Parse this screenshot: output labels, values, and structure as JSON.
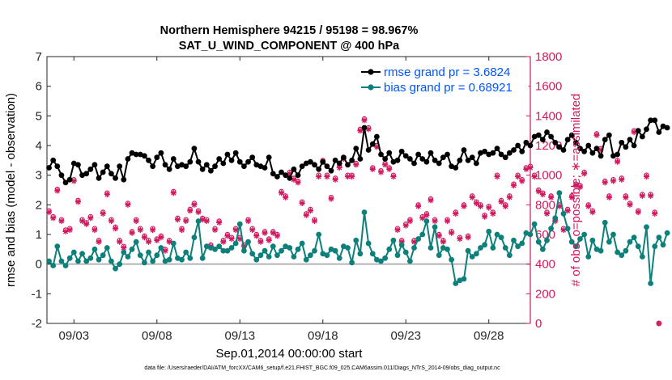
{
  "chart_data": {
    "type": "line",
    "title_line1": "Northern Hemisphere 94215 / 95198 = 98.967%",
    "title_line2": "SAT_U_WIND_COMPONENT @ 400 hPa",
    "xlabel": "Sep.01,2014 00:00:00 start",
    "ylabel_left": "rmse and bias (model - observation)",
    "ylabel_right": "# of obs: o=possible; ∗=assimilated",
    "footer": "data file: /Users/raeder/DAI/ATM_forcXX/CAM6_setup/f.e21.FHIST_BGC.f09_025.CAM6assim.011/Diags_NTrS_2014-09/obs_diag_output.nc",
    "x_range": [
      1.375,
      30.5
    ],
    "ylim_left": [
      -2,
      7
    ],
    "ylim_right": [
      0,
      1800
    ],
    "x_ticks": [
      {
        "x": 3,
        "label": "09/03"
      },
      {
        "x": 8,
        "label": "09/08"
      },
      {
        "x": 13,
        "label": "09/13"
      },
      {
        "x": 18,
        "label": "09/18"
      },
      {
        "x": 23,
        "label": "09/23"
      },
      {
        "x": 28,
        "label": "09/28"
      }
    ],
    "y_ticks_left": [
      "-2",
      "-1",
      "0",
      "1",
      "2",
      "3",
      "4",
      "5",
      "6",
      "7"
    ],
    "y_ticks_right": [
      "0",
      "200",
      "400",
      "600",
      "800",
      "1000",
      "1200",
      "1400",
      "1600",
      "1800"
    ],
    "zero_line": 0,
    "x_start": 1.5,
    "x_step": 0.25,
    "colors": {
      "rmse": "#000000",
      "bias": "#0e807b",
      "obs": "#d2195f",
      "zero": "#b5b5b5",
      "legend_text": "#0055ff"
    },
    "legend": {
      "placement": "top-right"
    },
    "series": [
      {
        "name": "rmse grand pr = 3.6824",
        "axis": "left",
        "values": [
          3.25,
          3.5,
          3.3,
          3.0,
          2.75,
          2.85,
          3.4,
          3.35,
          3.0,
          3.05,
          3.2,
          3.35,
          2.9,
          3.1,
          3.3,
          3.05,
          2.9,
          3.3,
          2.85,
          3.55,
          3.75,
          3.7,
          3.7,
          3.65,
          3.5,
          3.3,
          3.6,
          3.75,
          3.35,
          3.2,
          3.55,
          3.3,
          3.35,
          3.3,
          3.45,
          3.9,
          3.45,
          3.2,
          3.35,
          3.15,
          3.3,
          3.55,
          3.4,
          3.7,
          3.5,
          3.75,
          3.45,
          3.3,
          3.45,
          3.6,
          3.35,
          3.3,
          3.25,
          3.6,
          3.05,
          2.95,
          3.1,
          3.0,
          2.9,
          3.2,
          3.0,
          3.3,
          3.4,
          3.45,
          3.35,
          3.2,
          3.45,
          3.3,
          3.15,
          3.5,
          3.4,
          3.6,
          3.35,
          3.5,
          3.9,
          3.55,
          4.6,
          3.85,
          4.05,
          4.3,
          3.7,
          3.55,
          3.75,
          3.45,
          3.5,
          3.8,
          3.65,
          3.55,
          3.4,
          3.7,
          3.55,
          3.45,
          3.75,
          3.5,
          3.4,
          3.6,
          3.7,
          3.3,
          3.25,
          3.5,
          3.85,
          3.5,
          3.6,
          3.4,
          3.75,
          3.8,
          3.7,
          3.75,
          3.9,
          3.7,
          3.6,
          3.75,
          3.85,
          4.0,
          3.8,
          4.1,
          4.0,
          4.3,
          4.35,
          4.2,
          4.45,
          4.3,
          4.1,
          3.95,
          3.85,
          4.2,
          4.35,
          4.1,
          3.9,
          3.8,
          4.0,
          3.75,
          3.9,
          3.65,
          4.2,
          4.35,
          3.65,
          3.7,
          4.1,
          3.95,
          4.2,
          4.0,
          4.5,
          4.3,
          4.55,
          4.85,
          4.85,
          4.45,
          4.65,
          4.6
        ]
      },
      {
        "name": "bias grand pr = 0.68921",
        "axis": "left",
        "values": [
          0.1,
          -0.05,
          0.6,
          0.1,
          -0.05,
          0.2,
          0.4,
          0.1,
          0.35,
          0.1,
          0.2,
          0.5,
          0.15,
          0.3,
          0.55,
          0.1,
          -0.15,
          0.0,
          0.4,
          0.25,
          0.5,
          0.75,
          0.3,
          0.05,
          0.4,
          0.1,
          0.3,
          0.55,
          0.1,
          0.15,
          0.7,
          0.2,
          0.15,
          0.4,
          0.2,
          0.9,
          1.45,
          0.2,
          0.6,
          0.55,
          0.5,
          0.6,
          0.45,
          0.45,
          0.55,
          0.7,
          1.35,
          0.45,
          0.75,
          0.35,
          0.15,
          0.3,
          0.45,
          0.25,
          0.6,
          0.3,
          0.45,
          0.6,
          0.55,
          0.25,
          0.5,
          0.7,
          0.15,
          0.3,
          0.45,
          1.0,
          0.35,
          0.3,
          0.5,
          0.45,
          0.2,
          0.6,
          0.55,
          0.05,
          0.8,
          0.35,
          1.75,
          0.7,
          0.35,
          0.15,
          0.1,
          0.2,
          0.5,
          0.8,
          0.3,
          0.65,
          0.4,
          0.1,
          0.55,
          0.85,
          1.0,
          1.45,
          0.55,
          1.25,
          0.3,
          0.55,
          0.5,
          0.15,
          -0.65,
          -0.55,
          -0.5,
          0.45,
          0.25,
          0.35,
          0.55,
          0.65,
          1.1,
          0.55,
          1.0,
          0.9,
          0.55,
          0.3,
          0.8,
          0.6,
          0.7,
          1.05,
          1.0,
          1.35,
          0.75,
          0.5,
          0.8,
          1.2,
          1.55,
          2.4,
          1.7,
          1.2,
          0.75,
          0.6,
          0.85,
          1.0,
          0.25,
          0.8,
          0.5,
          0.45,
          1.4,
          0.75,
          1.0,
          0.4,
          0.3,
          0.45,
          0.75,
          0.9,
          0.6,
          0.25,
          1.25,
          -0.65,
          0.6,
          0.9,
          0.65,
          1.05
        ]
      },
      {
        "name": "possible",
        "axis": "right",
        "values": [
          760,
          720,
          905,
          700,
          630,
          640,
          970,
          830,
          700,
          680,
          720,
          640,
          560,
          750,
          880,
          700,
          650,
          560,
          520,
          810,
          620,
          700,
          640,
          590,
          560,
          640,
          570,
          590,
          500,
          560,
          890,
          710,
          640,
          700,
          770,
          810,
          760,
          710,
          700,
          530,
          640,
          690,
          560,
          600,
          580,
          640,
          580,
          530,
          700,
          640,
          600,
          560,
          620,
          570,
          620,
          600,
          890,
          860,
          1020,
          980,
          960,
          820,
          740,
          770,
          700,
          1000,
          1100,
          1000,
          850,
          980,
          1060,
          1120,
          1000,
          1000,
          1080,
          1310,
          1380,
          1320,
          1050,
          1200,
          1030,
          1080,
          1050,
          1000,
          640,
          560,
          670,
          700,
          560,
          800,
          720,
          740,
          840,
          700,
          600,
          560,
          700,
          620,
          750,
          580,
          800,
          590,
          860,
          820,
          800,
          730,
          790,
          750,
          1000,
          830,
          800,
          860,
          940,
          1000,
          970,
          1050,
          1060,
          1000,
          900,
          880,
          750,
          860,
          700,
          800,
          640,
          770,
          860,
          940,
          930,
          1020,
          800,
          760,
          1280,
          1180,
          960,
          860,
          970,
          1100,
          980,
          860,
          810,
          1300,
          760,
          870,
          1000,
          870,
          750,
          0
        ]
      },
      {
        "name": "assimilated",
        "axis": "right",
        "values": [
          750,
          710,
          895,
          690,
          620,
          630,
          960,
          820,
          690,
          670,
          710,
          630,
          550,
          740,
          870,
          690,
          640,
          550,
          510,
          800,
          610,
          690,
          630,
          580,
          550,
          630,
          560,
          580,
          490,
          550,
          880,
          700,
          630,
          690,
          760,
          800,
          750,
          700,
          690,
          520,
          630,
          680,
          550,
          590,
          570,
          630,
          570,
          520,
          690,
          630,
          590,
          550,
          610,
          560,
          610,
          590,
          880,
          850,
          1010,
          970,
          950,
          810,
          730,
          760,
          690,
          990,
          1090,
          990,
          840,
          970,
          1050,
          1110,
          990,
          990,
          1070,
          1300,
          1370,
          1310,
          1040,
          1190,
          1020,
          1070,
          1040,
          990,
          630,
          550,
          660,
          690,
          550,
          790,
          710,
          730,
          830,
          690,
          590,
          550,
          690,
          610,
          740,
          570,
          790,
          580,
          850,
          810,
          790,
          720,
          780,
          740,
          990,
          820,
          790,
          850,
          930,
          990,
          960,
          1040,
          1050,
          990,
          890,
          870,
          740,
          850,
          690,
          790,
          630,
          760,
          850,
          930,
          920,
          1010,
          790,
          750,
          1270,
          1170,
          950,
          850,
          960,
          1090,
          970,
          850,
          800,
          1290,
          750,
          860,
          990,
          860,
          740,
          0
        ]
      }
    ]
  }
}
